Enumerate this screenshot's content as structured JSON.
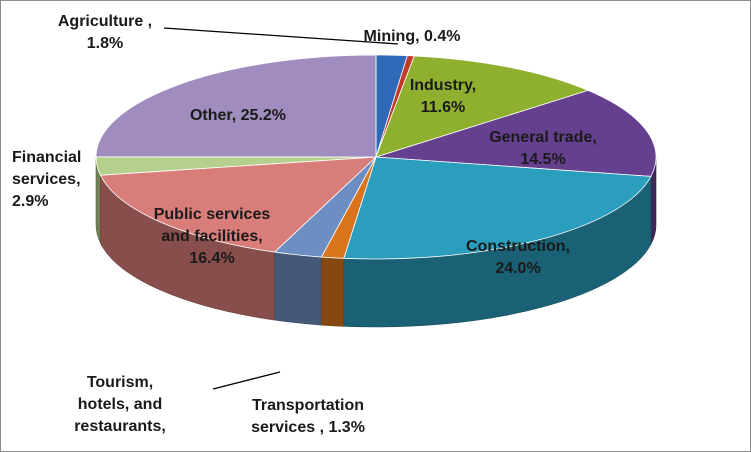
{
  "chart_data": {
    "type": "pie",
    "style": "3d",
    "title": "",
    "start_angle_deg": 90,
    "direction": "clockwise",
    "slices": [
      {
        "name": "Agriculture",
        "value": 1.8,
        "color": "#2f68b6",
        "label_lines": [
          "Agriculture ,",
          "1.8%"
        ]
      },
      {
        "name": "Mining",
        "value": 0.4,
        "color": "#c0392b",
        "label_lines": [
          "Mining, 0.4%"
        ]
      },
      {
        "name": "Industry",
        "value": 11.6,
        "color": "#8fb02e",
        "label_lines": [
          "Industry,",
          "11.6%"
        ]
      },
      {
        "name": "General trade",
        "value": 14.5,
        "color": "#65408f",
        "label_lines": [
          "General trade,",
          "14.5%"
        ]
      },
      {
        "name": "Construction",
        "value": 24.0,
        "color": "#2b9dbd",
        "label_lines": [
          "Construction,",
          "24.0%"
        ]
      },
      {
        "name": "Transportation services",
        "value": 1.3,
        "color": "#d9731c",
        "label_lines": [
          "Transportation",
          "services , 1.3%"
        ]
      },
      {
        "name": "Tourism, hotels, and restaurants",
        "value": 2.8,
        "color": "#6d8ec2",
        "label_lines": [
          "Tourism,",
          "hotels, and",
          "restaurants,"
        ]
      },
      {
        "name": "Public services and facilities",
        "value": 16.4,
        "color": "#d97d7a",
        "label_lines": [
          "Public services",
          "and facilities,",
          "16.4%"
        ]
      },
      {
        "name": "Financial services",
        "value": 2.9,
        "color": "#b5d08d",
        "label_lines": [
          "Financial",
          "services,",
          "2.9%"
        ]
      },
      {
        "name": "Other",
        "value": 25.2,
        "color": "#a08cbf",
        "label_lines": [
          "Other, 25.2%"
        ]
      }
    ]
  }
}
